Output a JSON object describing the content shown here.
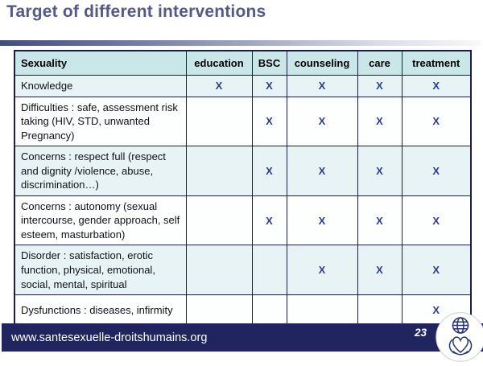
{
  "slide": {
    "title": "Target of different interventions",
    "footer": {
      "url": "www.santesexuelle-droitshumains.org",
      "page_number": "23"
    },
    "logo_icon": "globe-hands-heart-logo"
  },
  "colors": {
    "title_text": "#54598a",
    "header_cell_bg": "#c9e6e8",
    "tint_row_bg": "#e7f3f5",
    "table_border": "#1c1c45",
    "mark_text": "#2f3d8f",
    "footer_band_bg": "#20255f",
    "footer_text": "#ffffff"
  },
  "table": {
    "mark_char": "X",
    "columns": [
      "Sexuality",
      "education",
      "BSC",
      "counseling",
      "care",
      "treatment"
    ],
    "rows": [
      {
        "label": "Knowledge",
        "marks": [
          1,
          1,
          1,
          1,
          1
        ]
      },
      {
        "label": "Difficulties : safe, assessment risk taking (HIV, STD, unwanted Pregnancy)",
        "marks": [
          0,
          1,
          1,
          1,
          1
        ]
      },
      {
        "label": "Concerns : respect full (respect and dignity /violence, abuse, discrimination…)",
        "marks": [
          0,
          1,
          1,
          1,
          1
        ]
      },
      {
        "label": "Concerns : autonomy (sexual intercourse, gender approach, self esteem, masturbation)",
        "marks": [
          0,
          1,
          1,
          1,
          1
        ]
      },
      {
        "label": "Disorder : satisfaction, erotic function, physical, emotional, social, mental, spiritual",
        "marks": [
          0,
          0,
          1,
          1,
          1
        ]
      },
      {
        "label": "Dysfunctions : diseases, infirmity",
        "marks": [
          0,
          0,
          0,
          0,
          1
        ]
      }
    ]
  }
}
